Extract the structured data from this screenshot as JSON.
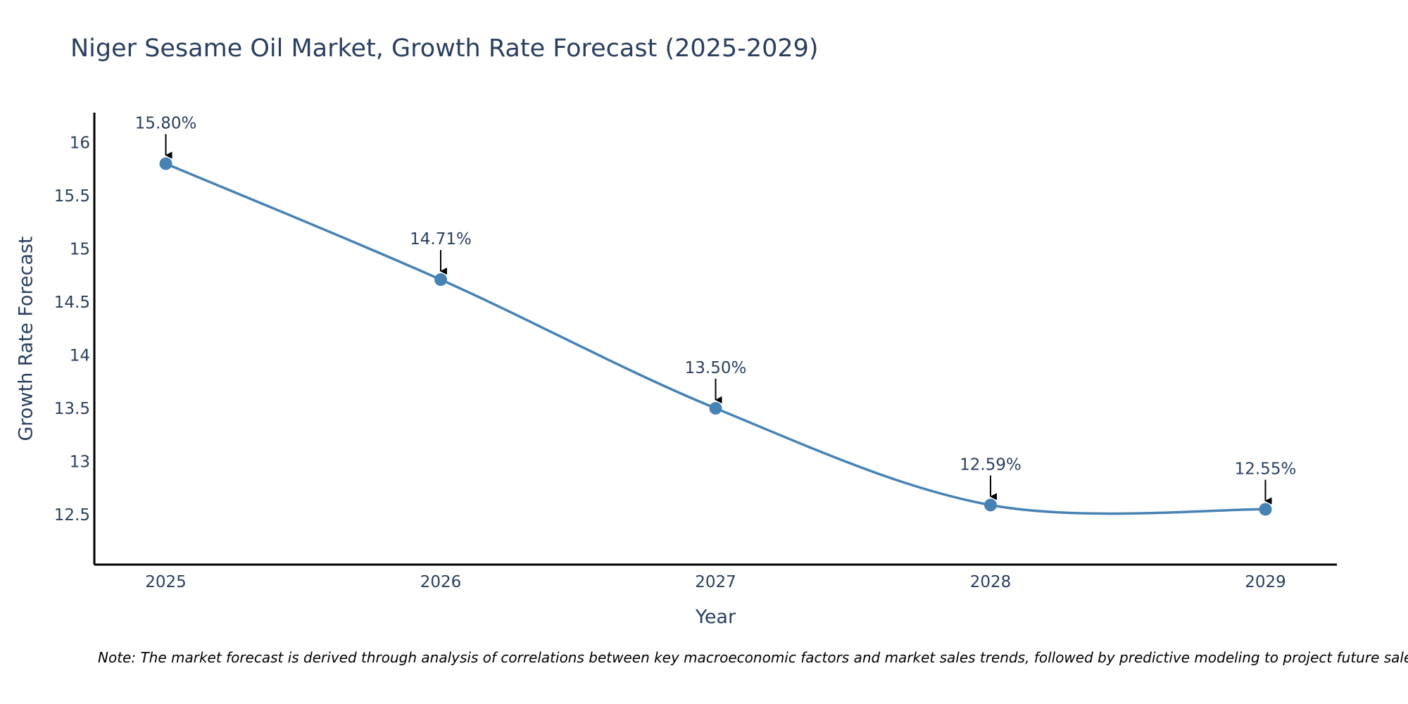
{
  "colors": {
    "line": "#4682b4",
    "marker": "#4682b4",
    "arrow": "#000000",
    "axis": "#000000",
    "text": "#2a3f5f",
    "background": "#ffffff"
  },
  "chart_data": {
    "type": "line",
    "title": "Niger Sesame Oil Market, Growth Rate Forecast (2025-2029)",
    "xlabel": "Year",
    "ylabel": "Growth Rate Forecast",
    "categories": [
      "2025",
      "2026",
      "2027",
      "2028",
      "2029"
    ],
    "series": [
      {
        "name": "Growth Rate Forecast",
        "values": [
          15.8,
          14.71,
          13.5,
          12.59,
          12.55
        ]
      }
    ],
    "data_labels": [
      "15.80%",
      "14.71%",
      "13.50%",
      "12.59%",
      "12.55%"
    ],
    "yticks": [
      12.5,
      13,
      13.5,
      14,
      14.5,
      15,
      15.5,
      16
    ],
    "ytick_labels": [
      "12.5",
      "13",
      "13.5",
      "14",
      "14.5",
      "15",
      "15.5",
      "16"
    ],
    "ylim": [
      12.03,
      16.28
    ],
    "xlim": [
      -0.26,
      4.26
    ],
    "grid": false,
    "legend": "none",
    "smoothing": "spline"
  },
  "note": "Note: The market forecast is derived through analysis of correlations between key macroeconomic factors and market sales trends, followed by predictive modeling to project future sales."
}
